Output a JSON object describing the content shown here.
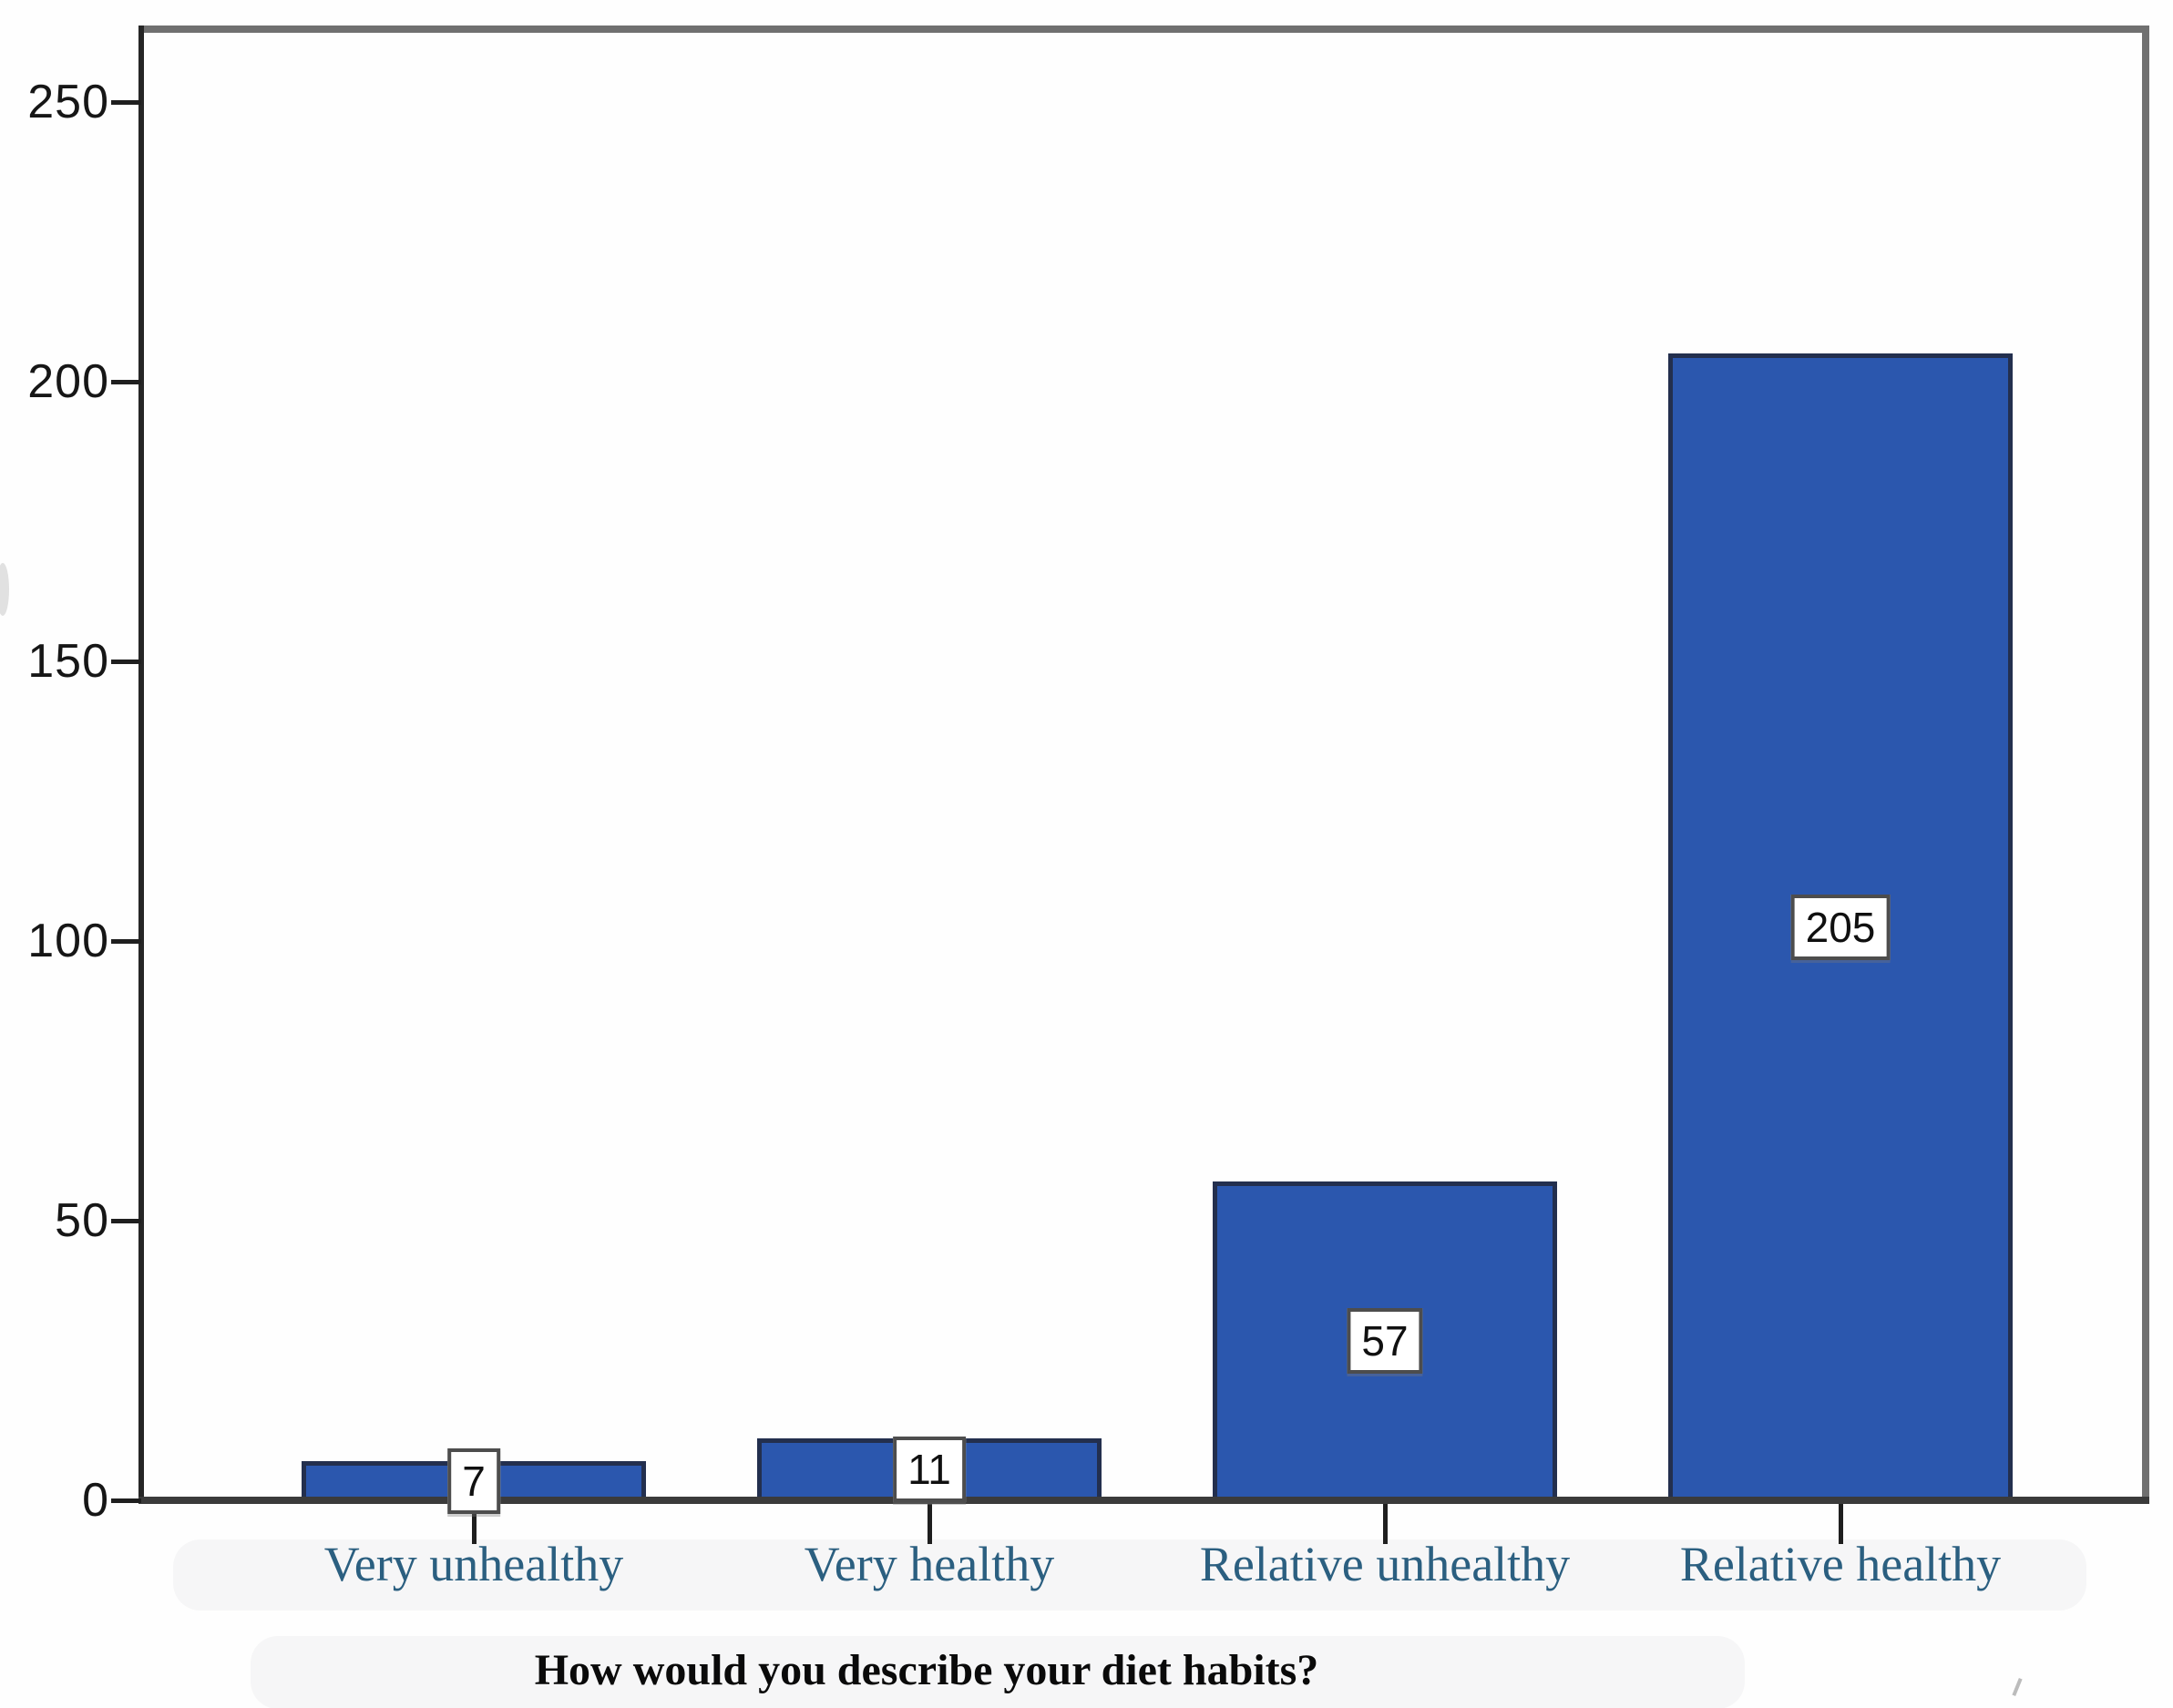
{
  "chart_data": {
    "type": "bar",
    "title": "",
    "xlabel": "How would you describe your diet habits?",
    "ylabel": "",
    "categories": [
      "Very unhealthy",
      "Very healthy",
      "Relative unhealthy",
      "Relative healthy"
    ],
    "values": [
      7,
      11,
      57,
      205
    ],
    "data_labels": [
      "7",
      "11",
      "57",
      "205"
    ],
    "ylim": [
      0,
      250
    ],
    "yticks": [
      0,
      50,
      100,
      150,
      200,
      250
    ],
    "grid": false,
    "legend": null,
    "colors": {
      "bar_fill": "#2b57ae",
      "bar_border": "#232f4e",
      "axis_line": "#3b3b3b",
      "frame_border": "#707070",
      "tick": "#1f1f1f",
      "tick_label": "#161616",
      "category_label": "#2b5f80",
      "title_text": "#0a0a0a",
      "value_box_bg": "#ffffff",
      "value_box_border": "#4d4d4d"
    }
  }
}
